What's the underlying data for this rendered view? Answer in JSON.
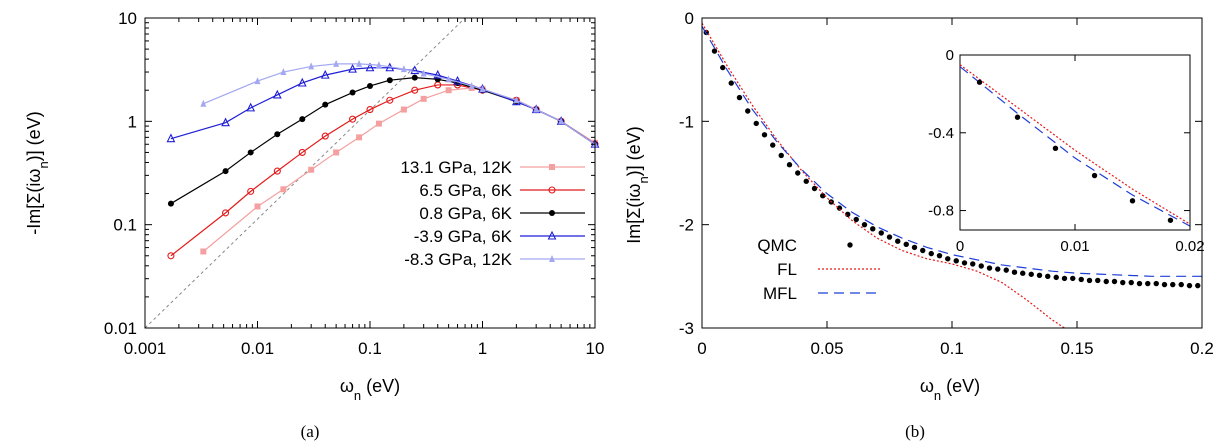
{
  "chart_data": [
    {
      "type": "line",
      "caption": "(a)",
      "xlabel": "ω_n (eV)",
      "ylabel": "-Im[Σ(iω_n)] (eV)",
      "xscale": "log",
      "yscale": "log",
      "xlim": [
        0.001,
        10
      ],
      "ylim": [
        0.01,
        10
      ],
      "xticks": [
        "0.001",
        "0.01",
        "0.1",
        "1",
        "10"
      ],
      "yticks": [
        "0.01",
        "0.1",
        "1",
        "10"
      ],
      "legend_position": "center-right",
      "series": [
        {
          "name": "13.1 GPa, 12K",
          "color": "#f4a0a0",
          "marker": "square",
          "x": [
            0.0033,
            0.01,
            0.017,
            0.03,
            0.05,
            0.08,
            0.12,
            0.2,
            0.3,
            0.5,
            0.8,
            1.0,
            2.0,
            3.0,
            5.0,
            10.0
          ],
          "y": [
            0.055,
            0.15,
            0.22,
            0.34,
            0.5,
            0.7,
            0.95,
            1.3,
            1.65,
            2.0,
            2.1,
            2.05,
            1.6,
            1.3,
            1.0,
            0.62
          ]
        },
        {
          "name": "6.5 GPa, 6K",
          "color": "#e41a1a",
          "marker": "circle-open",
          "x": [
            0.0017,
            0.0052,
            0.0087,
            0.015,
            0.025,
            0.04,
            0.07,
            0.1,
            0.15,
            0.25,
            0.4,
            0.6,
            1.0,
            2.0,
            3.0,
            5.0,
            10.0
          ],
          "y": [
            0.05,
            0.13,
            0.21,
            0.33,
            0.5,
            0.72,
            1.05,
            1.3,
            1.6,
            2.0,
            2.25,
            2.25,
            2.0,
            1.6,
            1.3,
            1.0,
            0.6
          ]
        },
        {
          "name": "0.8 GPa, 6K",
          "color": "#000000",
          "marker": "circle-filled",
          "x": [
            0.0017,
            0.0052,
            0.0087,
            0.015,
            0.025,
            0.04,
            0.07,
            0.1,
            0.15,
            0.25,
            0.4,
            0.6,
            1.0,
            2.0,
            3.0,
            5.0,
            10.0
          ],
          "y": [
            0.16,
            0.33,
            0.5,
            0.75,
            1.05,
            1.45,
            1.9,
            2.2,
            2.5,
            2.65,
            2.55,
            2.35,
            2.0,
            1.55,
            1.3,
            1.0,
            0.6
          ]
        },
        {
          "name": "-3.9 GPa, 6K",
          "color": "#1f1fd6",
          "marker": "triangle-open",
          "x": [
            0.0017,
            0.0052,
            0.0087,
            0.015,
            0.025,
            0.04,
            0.07,
            0.1,
            0.15,
            0.25,
            0.4,
            0.6,
            1.0,
            2.0,
            3.0,
            5.0,
            10.0
          ],
          "y": [
            0.68,
            0.97,
            1.35,
            1.8,
            2.35,
            2.8,
            3.2,
            3.3,
            3.3,
            3.1,
            2.8,
            2.45,
            2.05,
            1.55,
            1.3,
            1.0,
            0.6
          ]
        },
        {
          "name": "-8.3 GPa, 12K",
          "color": "#a3a8f0",
          "marker": "star",
          "x": [
            0.0033,
            0.01,
            0.017,
            0.03,
            0.05,
            0.08,
            0.12,
            0.2,
            0.3,
            0.5,
            0.8,
            1.0,
            2.0,
            3.0,
            5.0,
            10.0
          ],
          "y": [
            1.48,
            2.45,
            3.0,
            3.4,
            3.6,
            3.6,
            3.5,
            3.2,
            2.9,
            2.55,
            2.2,
            2.05,
            1.6,
            1.3,
            1.0,
            0.6
          ]
        }
      ],
      "reference_line": {
        "style": "dashed",
        "color": "#888888",
        "x": [
          0.001,
          0.7
        ],
        "y": [
          0.01,
          10
        ]
      }
    },
    {
      "type": "scatter",
      "caption": "(b)",
      "xlabel": "ω_n (eV)",
      "ylabel": "Im[Σ(iω_n)] (eV)",
      "xlim": [
        0,
        0.2
      ],
      "ylim": [
        -3,
        0
      ],
      "xticks": [
        "0",
        "0.05",
        "0.1",
        "0.15",
        "0.2"
      ],
      "yticks": [
        "0",
        "-1",
        "-2",
        "-3"
      ],
      "legend_position": "bottom-left",
      "series": [
        {
          "name": "QMC",
          "color": "#000000",
          "marker": "circle-filled",
          "x": [
            0.0017,
            0.005,
            0.0083,
            0.0117,
            0.015,
            0.0183,
            0.0217,
            0.025,
            0.0283,
            0.0317,
            0.035,
            0.0383,
            0.0417,
            0.045,
            0.0483,
            0.0517,
            0.055,
            0.0583,
            0.0617,
            0.065,
            0.0683,
            0.0717,
            0.075,
            0.0783,
            0.0817,
            0.085,
            0.0883,
            0.0917,
            0.095,
            0.0983,
            0.1017,
            0.105,
            0.1083,
            0.1117,
            0.115,
            0.1183,
            0.1217,
            0.125,
            0.1283,
            0.1317,
            0.135,
            0.1383,
            0.1417,
            0.145,
            0.1483,
            0.1517,
            0.155,
            0.1583,
            0.1617,
            0.165,
            0.1683,
            0.1717,
            0.175,
            0.1783,
            0.1817,
            0.185,
            0.1883,
            0.1917,
            0.195,
            0.1983
          ],
          "y": [
            -0.14,
            -0.32,
            -0.48,
            -0.63,
            -0.77,
            -0.9,
            -1.02,
            -1.13,
            -1.23,
            -1.33,
            -1.42,
            -1.5,
            -1.58,
            -1.65,
            -1.72,
            -1.78,
            -1.84,
            -1.9,
            -1.95,
            -2.0,
            -2.04,
            -2.08,
            -2.12,
            -2.16,
            -2.19,
            -2.22,
            -2.25,
            -2.28,
            -2.3,
            -2.33,
            -2.35,
            -2.37,
            -2.38,
            -2.4,
            -2.42,
            -2.43,
            -2.44,
            -2.46,
            -2.47,
            -2.48,
            -2.49,
            -2.5,
            -2.51,
            -2.52,
            -2.52,
            -2.53,
            -2.54,
            -2.54,
            -2.55,
            -2.55,
            -2.56,
            -2.56,
            -2.57,
            -2.57,
            -2.57,
            -2.58,
            -2.58,
            -2.58,
            -2.59,
            -2.59
          ]
        },
        {
          "name": "FL",
          "color": "#e41a1a",
          "style": "dotted",
          "x": [
            0.0,
            0.01,
            0.02,
            0.03,
            0.04,
            0.05,
            0.06,
            0.07,
            0.08,
            0.09,
            0.1,
            0.11,
            0.12,
            0.13,
            0.14,
            0.145
          ],
          "y": [
            -0.05,
            -0.46,
            -0.84,
            -1.18,
            -1.48,
            -1.74,
            -1.96,
            -2.13,
            -2.25,
            -2.33,
            -2.38,
            -2.45,
            -2.56,
            -2.73,
            -2.92,
            -3.0
          ]
        },
        {
          "name": "MFL",
          "color": "#1f3fd6",
          "style": "dashed",
          "x": [
            0.0,
            0.01,
            0.02,
            0.03,
            0.04,
            0.05,
            0.06,
            0.07,
            0.08,
            0.09,
            0.1,
            0.11,
            0.12,
            0.13,
            0.14,
            0.15,
            0.16,
            0.17,
            0.18,
            0.19,
            0.2
          ],
          "y": [
            -0.08,
            -0.5,
            -0.88,
            -1.2,
            -1.47,
            -1.7,
            -1.88,
            -2.02,
            -2.13,
            -2.22,
            -2.29,
            -2.34,
            -2.39,
            -2.42,
            -2.45,
            -2.47,
            -2.48,
            -2.49,
            -2.5,
            -2.5,
            -2.5
          ]
        }
      ],
      "inset": {
        "xlim": [
          0,
          0.02
        ],
        "ylim": [
          -0.9,
          0
        ],
        "xticks": [
          "0",
          "0.01",
          "0.02"
        ],
        "yticks": [
          "0",
          "-0.4",
          "-0.8"
        ],
        "qmc": {
          "x": [
            0.0017,
            0.005,
            0.0083,
            0.0117,
            0.015,
            0.0183
          ],
          "y": [
            -0.14,
            -0.32,
            -0.48,
            -0.62,
            -0.75,
            -0.85
          ]
        },
        "fl": {
          "x": [
            0.0,
            0.005,
            0.01,
            0.015,
            0.02
          ],
          "y": [
            -0.05,
            -0.27,
            -0.49,
            -0.69,
            -0.87
          ]
        },
        "mfl": {
          "x": [
            0.0,
            0.005,
            0.01,
            0.015,
            0.02
          ],
          "y": [
            -0.06,
            -0.3,
            -0.53,
            -0.72,
            -0.88
          ]
        }
      }
    }
  ]
}
